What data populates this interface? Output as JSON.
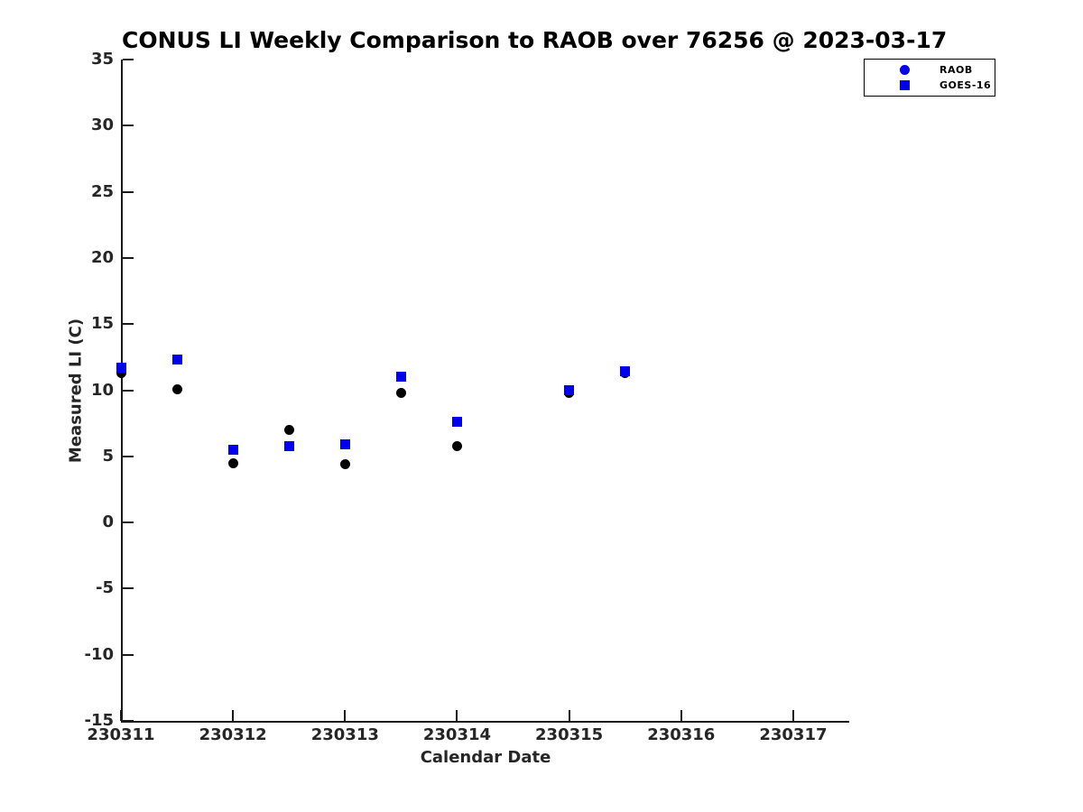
{
  "chart_data": {
    "type": "scatter",
    "title": "CONUS LI Weekly Comparison to RAOB over 76256 @ 2023-03-17",
    "xlabel": "Calendar Date",
    "ylabel": "Measured LI (C)",
    "xlim": [
      230311,
      230317.5
    ],
    "ylim": [
      -15,
      35
    ],
    "x_ticks": [
      230311,
      230312,
      230313,
      230314,
      230315,
      230316,
      230317
    ],
    "y_ticks": [
      35,
      30,
      25,
      20,
      15,
      10,
      5,
      0,
      -5,
      -10,
      -15
    ],
    "grid": false,
    "legend_position": "top-right-outside",
    "colors": {
      "raob_marker": "#000000",
      "goes_marker": "#0000ee",
      "legend_marker": "#0000ee"
    },
    "series": [
      {
        "name": "RAOB",
        "marker": "circle",
        "color": "#000000",
        "legend_marker_color": "#0000ee",
        "points": [
          [
            230311.0,
            11.3
          ],
          [
            230311.5,
            10.1
          ],
          [
            230312.0,
            4.5
          ],
          [
            230312.5,
            7.0
          ],
          [
            230313.0,
            4.4
          ],
          [
            230313.5,
            9.8
          ],
          [
            230314.0,
            5.8
          ],
          [
            230315.0,
            9.8
          ],
          [
            230315.5,
            11.3
          ]
        ]
      },
      {
        "name": "GOES-16",
        "marker": "square",
        "color": "#0000ee",
        "legend_marker_color": "#0000ee",
        "points": [
          [
            230311.0,
            11.7
          ],
          [
            230311.5,
            12.3
          ],
          [
            230312.0,
            5.5
          ],
          [
            230312.5,
            5.8
          ],
          [
            230313.0,
            5.9
          ],
          [
            230313.5,
            11.0
          ],
          [
            230314.0,
            7.6
          ],
          [
            230315.0,
            10.0
          ],
          [
            230315.5,
            11.4
          ]
        ]
      }
    ]
  }
}
